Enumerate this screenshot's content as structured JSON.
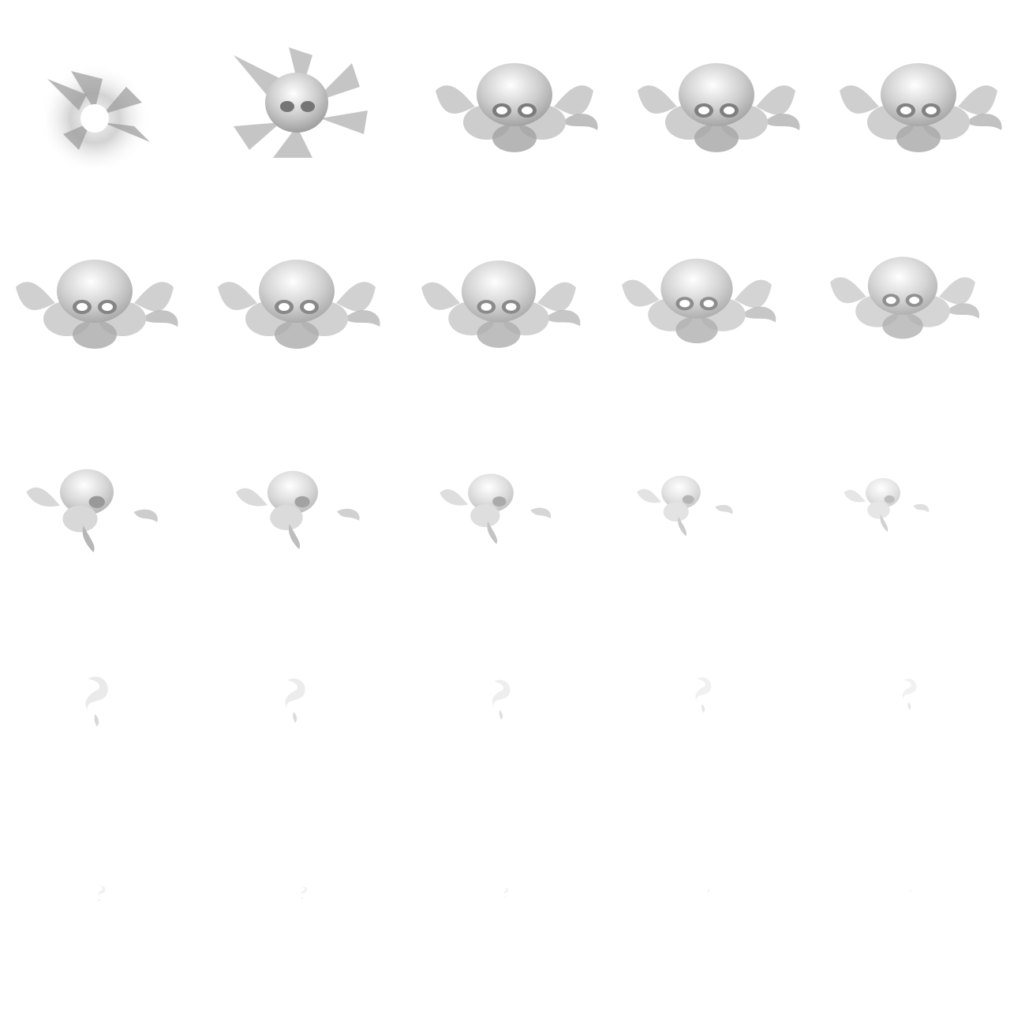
{
  "sprite_sheet": {
    "columns": 5,
    "rows": 5,
    "background_color": "#ffffff",
    "palette": {
      "light": "#f2f2f2",
      "mid": "#c8c8c8",
      "dark": "#9a9a9a",
      "shadow": "#6e6e6e"
    },
    "frames": [
      {
        "index": 1,
        "stage": "flash",
        "intensity": 1.0
      },
      {
        "index": 2,
        "stage": "burst",
        "intensity": 0.95
      },
      {
        "index": 3,
        "stage": "skull-cloud",
        "intensity": 0.9
      },
      {
        "index": 4,
        "stage": "skull-cloud",
        "intensity": 0.88
      },
      {
        "index": 5,
        "stage": "skull-cloud",
        "intensity": 0.86
      },
      {
        "index": 6,
        "stage": "skull-cloud",
        "intensity": 0.84
      },
      {
        "index": 7,
        "stage": "skull-cloud",
        "intensity": 0.82
      },
      {
        "index": 8,
        "stage": "skull-cloud",
        "intensity": 0.8
      },
      {
        "index": 9,
        "stage": "skull-cloud",
        "intensity": 0.78
      },
      {
        "index": 10,
        "stage": "skull-cloud",
        "intensity": 0.76
      },
      {
        "index": 11,
        "stage": "dissolve",
        "intensity": 0.7
      },
      {
        "index": 12,
        "stage": "dissolve",
        "intensity": 0.64
      },
      {
        "index": 13,
        "stage": "dissolve",
        "intensity": 0.58
      },
      {
        "index": 14,
        "stage": "dissolve",
        "intensity": 0.5
      },
      {
        "index": 15,
        "stage": "dissolve",
        "intensity": 0.44
      },
      {
        "index": 16,
        "stage": "wisp",
        "intensity": 0.38
      },
      {
        "index": 17,
        "stage": "wisp",
        "intensity": 0.34
      },
      {
        "index": 18,
        "stage": "wisp",
        "intensity": 0.3
      },
      {
        "index": 19,
        "stage": "wisp",
        "intensity": 0.26
      },
      {
        "index": 20,
        "stage": "wisp",
        "intensity": 0.22
      },
      {
        "index": 21,
        "stage": "fade",
        "intensity": 0.18
      },
      {
        "index": 22,
        "stage": "fade",
        "intensity": 0.14
      },
      {
        "index": 23,
        "stage": "fade",
        "intensity": 0.1
      },
      {
        "index": 24,
        "stage": "fade",
        "intensity": 0.07
      },
      {
        "index": 25,
        "stage": "fade",
        "intensity": 0.04
      }
    ]
  }
}
